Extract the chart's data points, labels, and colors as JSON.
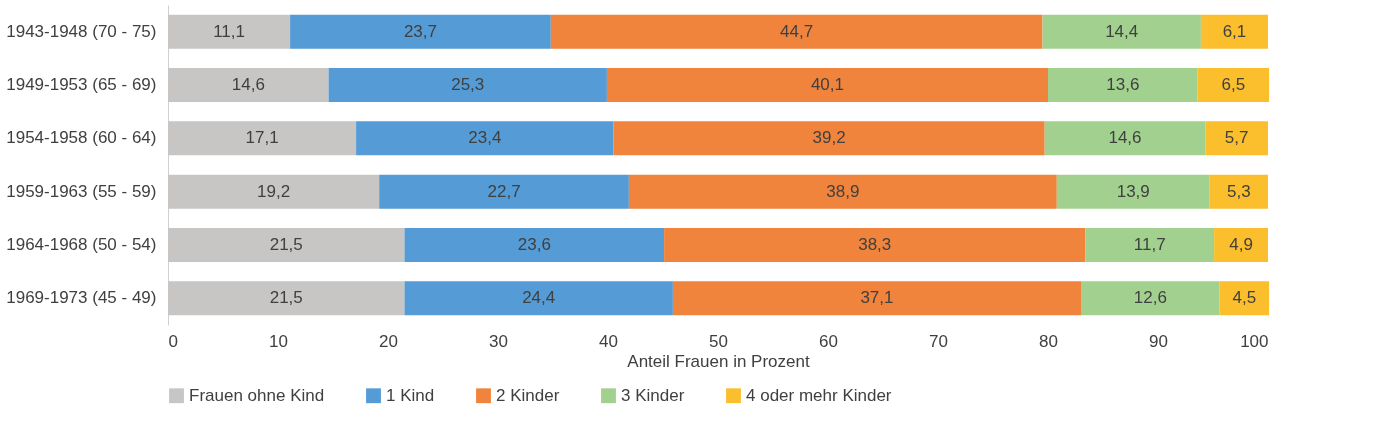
{
  "chart_data": {
    "type": "bar",
    "orientation": "horizontal",
    "stacked": true,
    "xlabel": "Anteil Frauen in Prozent",
    "categories": [
      "1943-1948 (70 - 75)",
      "1949-1953 (65 - 69)",
      "1954-1958 (60 - 64)",
      "1959-1963 (55 - 59)",
      "1964-1968 (50 - 54)",
      "1969-1973 (45 - 49)"
    ],
    "series": [
      {
        "name": "Frauen ohne Kind",
        "color": "#c8c6c4",
        "values": [
          11.1,
          14.6,
          17.1,
          19.2,
          21.5,
          21.5
        ],
        "value_labels": [
          "11,1",
          "14,6",
          "17,1",
          "19,2",
          "21,5",
          "21,5"
        ]
      },
      {
        "name": "1 Kind",
        "color": "#559bd6",
        "values": [
          23.7,
          25.3,
          23.4,
          22.7,
          23.6,
          24.4
        ],
        "value_labels": [
          "23,7",
          "25,3",
          "23,4",
          "22,7",
          "23,6",
          "24,4"
        ]
      },
      {
        "name": "2 Kinder",
        "color": "#f0843c",
        "values": [
          44.7,
          40.1,
          39.2,
          38.9,
          38.3,
          37.1
        ],
        "value_labels": [
          "44,7",
          "40,1",
          "39,2",
          "38,9",
          "38,3",
          "37,1"
        ]
      },
      {
        "name": "3 Kinder",
        "color": "#a2d08e",
        "values": [
          14.4,
          13.6,
          14.6,
          13.9,
          11.7,
          12.6
        ],
        "value_labels": [
          "14,4",
          "13,6",
          "14,6",
          "13,9",
          "11,7",
          "12,6"
        ]
      },
      {
        "name": "4 oder mehr Kinder",
        "color": "#fbbe2c",
        "values": [
          6.1,
          6.5,
          5.7,
          5.3,
          4.9,
          4.5
        ],
        "value_labels": [
          "6,1",
          "6,5",
          "5,7",
          "5,3",
          "4,9",
          "4,5"
        ]
      }
    ],
    "xlim": [
      0,
      100
    ],
    "xticks": [
      0,
      10,
      20,
      30,
      40,
      50,
      60,
      70,
      80,
      90,
      100
    ],
    "grid": false,
    "legend": "bottom"
  }
}
